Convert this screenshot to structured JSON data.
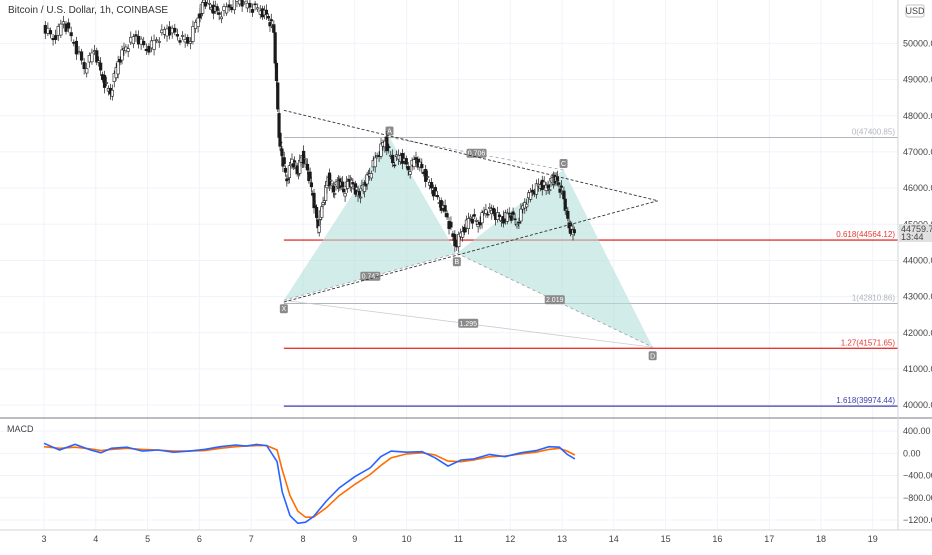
{
  "chart_data": {
    "type": "candlestick",
    "title": "Bitcoin / U.S. Dollar, 1h, COINBASE",
    "currency_badge": "USD",
    "x_ticks": [
      "3",
      "4",
      "5",
      "6",
      "7",
      "8",
      "9",
      "10",
      "11",
      "12",
      "13",
      "14",
      "15",
      "16",
      "17",
      "18",
      "19"
    ],
    "price_ticks": [
      "50000.00",
      "49000.00",
      "48000.00",
      "47000.00",
      "46000.00",
      "45000.00",
      "44000.00",
      "43000.00",
      "42000.00",
      "41000.00",
      "40000.00"
    ],
    "price_ylim": [
      39700,
      51200
    ],
    "current_price": "44759.78",
    "countdown": "13:44",
    "closes": [
      [
        3.0,
        50500
      ],
      [
        3.2,
        50100
      ],
      [
        3.4,
        50600
      ],
      [
        3.6,
        50000
      ],
      [
        3.8,
        49300
      ],
      [
        4.0,
        49800
      ],
      [
        4.15,
        49000
      ],
      [
        4.3,
        48600
      ],
      [
        4.45,
        49500
      ],
      [
        4.6,
        49900
      ],
      [
        4.8,
        50200
      ],
      [
        5.0,
        49800
      ],
      [
        5.2,
        50100
      ],
      [
        5.4,
        50400
      ],
      [
        5.6,
        50200
      ],
      [
        5.8,
        50000
      ],
      [
        6.0,
        50700
      ],
      [
        6.1,
        51200
      ],
      [
        6.25,
        51000
      ],
      [
        6.4,
        50800
      ],
      [
        6.6,
        51000
      ],
      [
        6.8,
        51200
      ],
      [
        7.0,
        51000
      ],
      [
        7.2,
        50900
      ],
      [
        7.35,
        50700
      ],
      [
        7.45,
        50300
      ],
      [
        7.55,
        47400
      ],
      [
        7.6,
        46900
      ],
      [
        7.7,
        46200
      ],
      [
        7.8,
        46800
      ],
      [
        7.9,
        46400
      ],
      [
        8.0,
        46900
      ],
      [
        8.1,
        46500
      ],
      [
        8.2,
        45800
      ],
      [
        8.3,
        44900
      ],
      [
        8.4,
        45600
      ],
      [
        8.5,
        46300
      ],
      [
        8.6,
        45900
      ],
      [
        8.7,
        46200
      ],
      [
        8.8,
        45900
      ],
      [
        8.9,
        46200
      ],
      [
        9.0,
        46000
      ],
      [
        9.1,
        45800
      ],
      [
        9.2,
        46100
      ],
      [
        9.3,
        46400
      ],
      [
        9.45,
        46900
      ],
      [
        9.6,
        47300
      ],
      [
        9.75,
        46700
      ],
      [
        9.9,
        46900
      ],
      [
        10.05,
        46500
      ],
      [
        10.2,
        46800
      ],
      [
        10.35,
        46400
      ],
      [
        10.5,
        46000
      ],
      [
        10.65,
        45600
      ],
      [
        10.8,
        45200
      ],
      [
        10.95,
        44400
      ],
      [
        11.1,
        44800
      ],
      [
        11.25,
        45200
      ],
      [
        11.4,
        45000
      ],
      [
        11.55,
        45400
      ],
      [
        11.7,
        45300
      ],
      [
        11.85,
        45100
      ],
      [
        12.0,
        45300
      ],
      [
        12.15,
        45000
      ],
      [
        12.3,
        45600
      ],
      [
        12.45,
        45900
      ],
      [
        12.6,
        46100
      ],
      [
        12.75,
        46000
      ],
      [
        12.85,
        46300
      ],
      [
        12.95,
        46100
      ],
      [
        13.05,
        45700
      ],
      [
        13.15,
        44900
      ],
      [
        13.25,
        44760
      ]
    ],
    "harmonic_pattern": {
      "points": [
        {
          "name": "X",
          "x": 7.63,
          "y": 42900
        },
        {
          "name": "A",
          "x": 9.67,
          "y": 47400
        },
        {
          "name": "B",
          "x": 10.97,
          "y": 44200
        },
        {
          "name": "C",
          "x": 13.03,
          "y": 46500
        },
        {
          "name": "D",
          "x": 14.75,
          "y": 41600
        }
      ],
      "ratios": [
        "0.747",
        "0.706",
        "1.295",
        "2.019"
      ]
    },
    "fib_levels": [
      {
        "label": "0(47400.85)",
        "value": 47400,
        "color": "#b2b5be",
        "show_line": true
      },
      {
        "label": "0.618(44564.12)",
        "value": 44564,
        "color": "#e53935",
        "show_line": true
      },
      {
        "label": "1(42810.86)",
        "value": 42810,
        "color": "#b2b5be",
        "show_line": true
      },
      {
        "label": "1.27(41571.65)",
        "value": 41571,
        "color": "#e53935",
        "show_line": true
      },
      {
        "label": "1.618(39974.44)",
        "value": 39974,
        "color": "#3f3faf",
        "show_line": true
      }
    ],
    "triangle": {
      "upper_start": [
        7.63,
        48150
      ],
      "upper_end": [
        14.85,
        45650
      ],
      "lower_start": [
        7.63,
        42850
      ],
      "lower_end": [
        14.85,
        45650
      ]
    },
    "macd": {
      "label": "MACD",
      "ticks": [
        "400.00",
        "0.00",
        "−400.00",
        "−800.00",
        "−1200.00"
      ],
      "ylim": [
        -1380,
        600
      ],
      "macd_line": [
        [
          3.0,
          180
        ],
        [
          3.3,
          60
        ],
        [
          3.6,
          160
        ],
        [
          3.9,
          60
        ],
        [
          4.1,
          10
        ],
        [
          4.3,
          90
        ],
        [
          4.6,
          110
        ],
        [
          4.9,
          40
        ],
        [
          5.2,
          60
        ],
        [
          5.5,
          20
        ],
        [
          5.8,
          40
        ],
        [
          6.1,
          70
        ],
        [
          6.4,
          120
        ],
        [
          6.7,
          150
        ],
        [
          6.9,
          130
        ],
        [
          7.1,
          160
        ],
        [
          7.3,
          140
        ],
        [
          7.5,
          -150
        ],
        [
          7.6,
          -700
        ],
        [
          7.75,
          -1120
        ],
        [
          7.9,
          -1260
        ],
        [
          8.05,
          -1240
        ],
        [
          8.2,
          -1140
        ],
        [
          8.45,
          -860
        ],
        [
          8.7,
          -620
        ],
        [
          9.0,
          -420
        ],
        [
          9.3,
          -260
        ],
        [
          9.5,
          -60
        ],
        [
          9.7,
          40
        ],
        [
          10.0,
          20
        ],
        [
          10.3,
          30
        ],
        [
          10.55,
          -80
        ],
        [
          10.8,
          -230
        ],
        [
          11.05,
          -120
        ],
        [
          11.3,
          -100
        ],
        [
          11.6,
          -20
        ],
        [
          11.9,
          -60
        ],
        [
          12.2,
          10
        ],
        [
          12.5,
          50
        ],
        [
          12.75,
          120
        ],
        [
          12.95,
          110
        ],
        [
          13.1,
          -20
        ],
        [
          13.25,
          -100
        ]
      ],
      "signal_line": [
        [
          3.0,
          120
        ],
        [
          3.3,
          90
        ],
        [
          3.6,
          110
        ],
        [
          3.9,
          80
        ],
        [
          4.1,
          50
        ],
        [
          4.3,
          70
        ],
        [
          4.6,
          90
        ],
        [
          4.9,
          70
        ],
        [
          5.2,
          60
        ],
        [
          5.5,
          40
        ],
        [
          5.8,
          40
        ],
        [
          6.1,
          50
        ],
        [
          6.4,
          90
        ],
        [
          6.7,
          120
        ],
        [
          6.9,
          130
        ],
        [
          7.1,
          140
        ],
        [
          7.3,
          140
        ],
        [
          7.5,
          60
        ],
        [
          7.6,
          -300
        ],
        [
          7.75,
          -760
        ],
        [
          7.9,
          -1040
        ],
        [
          8.05,
          -1150
        ],
        [
          8.2,
          -1150
        ],
        [
          8.45,
          -980
        ],
        [
          8.7,
          -760
        ],
        [
          9.0,
          -560
        ],
        [
          9.3,
          -380
        ],
        [
          9.5,
          -220
        ],
        [
          9.7,
          -80
        ],
        [
          10.0,
          -10
        ],
        [
          10.3,
          10
        ],
        [
          10.55,
          -30
        ],
        [
          10.8,
          -140
        ],
        [
          11.05,
          -150
        ],
        [
          11.3,
          -120
        ],
        [
          11.6,
          -60
        ],
        [
          11.9,
          -50
        ],
        [
          12.2,
          -10
        ],
        [
          12.5,
          20
        ],
        [
          12.75,
          70
        ],
        [
          12.95,
          90
        ],
        [
          13.1,
          40
        ],
        [
          13.25,
          -30
        ]
      ]
    },
    "colors": {
      "macd_line": "#2962ff",
      "signal_line": "#ff6d00",
      "pattern_fill": "#b2dfdb",
      "candle": "#1a1a1a",
      "price_tag": "#e0e0e0"
    }
  }
}
